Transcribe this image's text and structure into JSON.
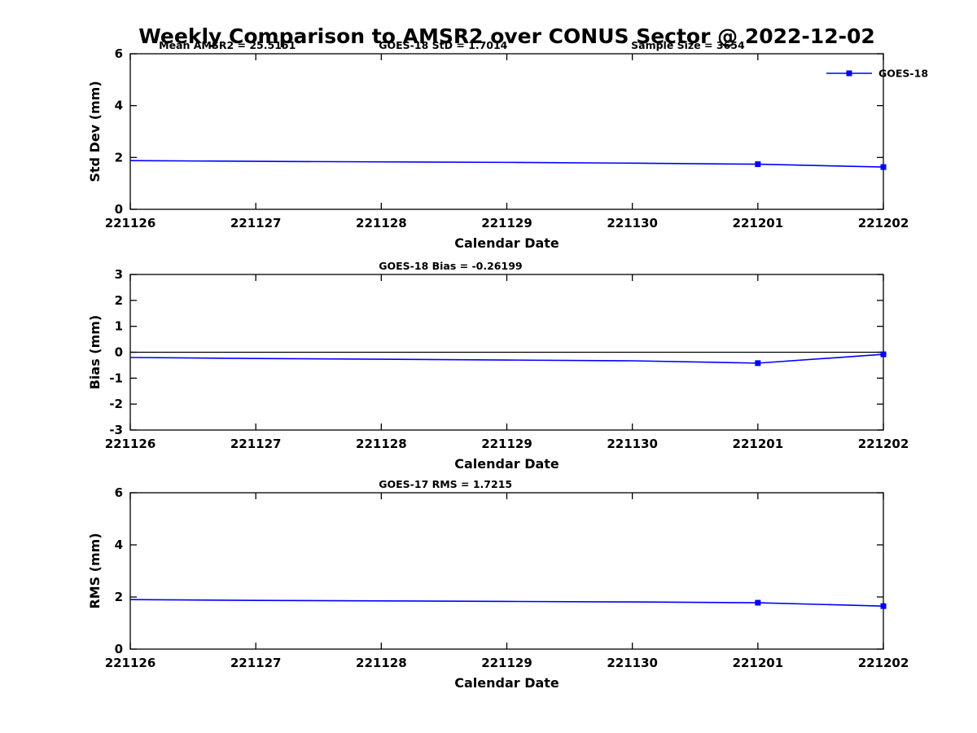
{
  "page_title": "Weekly Comparison to AMSR2 over CONUS Sector @ 2022-12-02",
  "colors": {
    "series": "#0000ff",
    "axis": "#000000",
    "background": "#ffffff"
  },
  "chart_data": [
    {
      "type": "line",
      "name": "std-dev",
      "ylabel": "Std Dev (mm)",
      "xlabel": "Calendar Date",
      "ylim": [
        0,
        6
      ],
      "yticks": [
        0,
        2,
        4,
        6
      ],
      "grid": false,
      "categories": [
        "221126",
        "221127",
        "221128",
        "221129",
        "221130",
        "221201",
        "221202"
      ],
      "annotations": [
        "Mean AMSR2 = 25.5151",
        "GOES-18 StD = 1.7014",
        "Sample Size = 3654"
      ],
      "legend": {
        "entries": [
          "GOES-18"
        ],
        "position": "northeast"
      },
      "series": [
        {
          "name": "GOES-18",
          "values": [
            1.88,
            1.85,
            1.83,
            1.81,
            1.78,
            1.74,
            1.63
          ],
          "marker": "square",
          "marker_indices": [
            5,
            6
          ]
        }
      ]
    },
    {
      "type": "line",
      "name": "bias",
      "ylabel": "Bias (mm)",
      "xlabel": "Calendar Date",
      "ylim": [
        -3,
        3
      ],
      "yticks": [
        -3,
        -2,
        -1,
        0,
        1,
        2,
        3
      ],
      "grid": false,
      "zero_line": true,
      "categories": [
        "221126",
        "221127",
        "221128",
        "221129",
        "221130",
        "221201",
        "221202"
      ],
      "annotations": [
        "GOES-18 Bias  = -0.26199"
      ],
      "legend": null,
      "series": [
        {
          "name": "GOES-18",
          "values": [
            -0.2,
            -0.24,
            -0.27,
            -0.3,
            -0.33,
            -0.42,
            -0.08
          ],
          "marker": "square",
          "marker_indices": [
            5,
            6
          ]
        }
      ]
    },
    {
      "type": "line",
      "name": "rms",
      "ylabel": "RMS (mm)",
      "xlabel": "Calendar Date",
      "ylim": [
        0,
        6
      ],
      "yticks": [
        0,
        2,
        4,
        6
      ],
      "grid": false,
      "categories": [
        "221126",
        "221127",
        "221128",
        "221129",
        "221130",
        "221201",
        "221202"
      ],
      "annotations": [
        "GOES-17 RMS = 1.7215"
      ],
      "legend": null,
      "series": [
        {
          "name": "GOES-18",
          "values": [
            1.9,
            1.87,
            1.85,
            1.83,
            1.81,
            1.78,
            1.65
          ],
          "marker": "square",
          "marker_indices": [
            5,
            6
          ]
        }
      ]
    }
  ]
}
